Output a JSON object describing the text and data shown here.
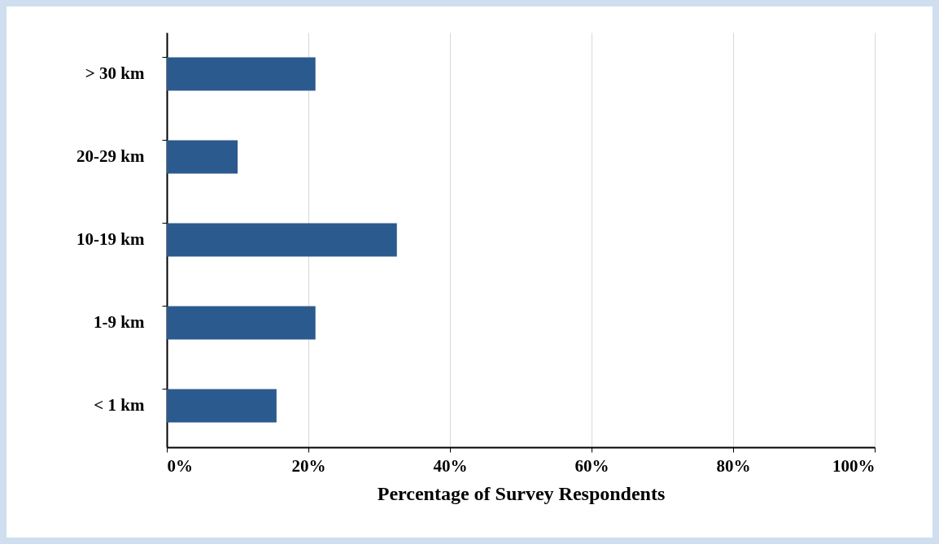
{
  "chart_data": {
    "type": "bar",
    "orientation": "horizontal",
    "xlabel": "Percentage of Survey Respondents",
    "categories": [
      "> 30 km",
      "20-29 km",
      "10-19 km",
      "1-9 km",
      "< 1 km"
    ],
    "values": [
      21,
      10,
      32.5,
      21,
      15.5
    ],
    "color": "#2b5a8e",
    "xlim": [
      0,
      100
    ],
    "xticks": [
      {
        "value": 0,
        "label": "0%"
      },
      {
        "value": 20,
        "label": "20%"
      },
      {
        "value": 40,
        "label": "40%"
      },
      {
        "value": 60,
        "label": "60%"
      },
      {
        "value": 80,
        "label": "80%"
      },
      {
        "value": 100,
        "label": "100%"
      }
    ],
    "grid": "x"
  }
}
